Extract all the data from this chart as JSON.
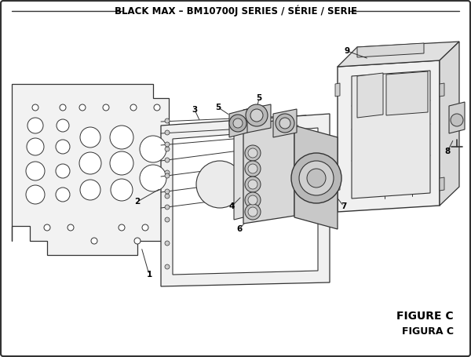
{
  "title": "BLACK MAX – BM10700J SERIES / SÉRIE / SERIE",
  "figure_label": "FIGURE C",
  "figura_label": "FIGURA C",
  "bg_color": "#ffffff",
  "line_color": "#333333",
  "text_color": "#000000",
  "title_fontsize": 8.5,
  "figure_label_fontsize": 10,
  "dpi": 100,
  "figw": 6.0,
  "figh": 4.55
}
